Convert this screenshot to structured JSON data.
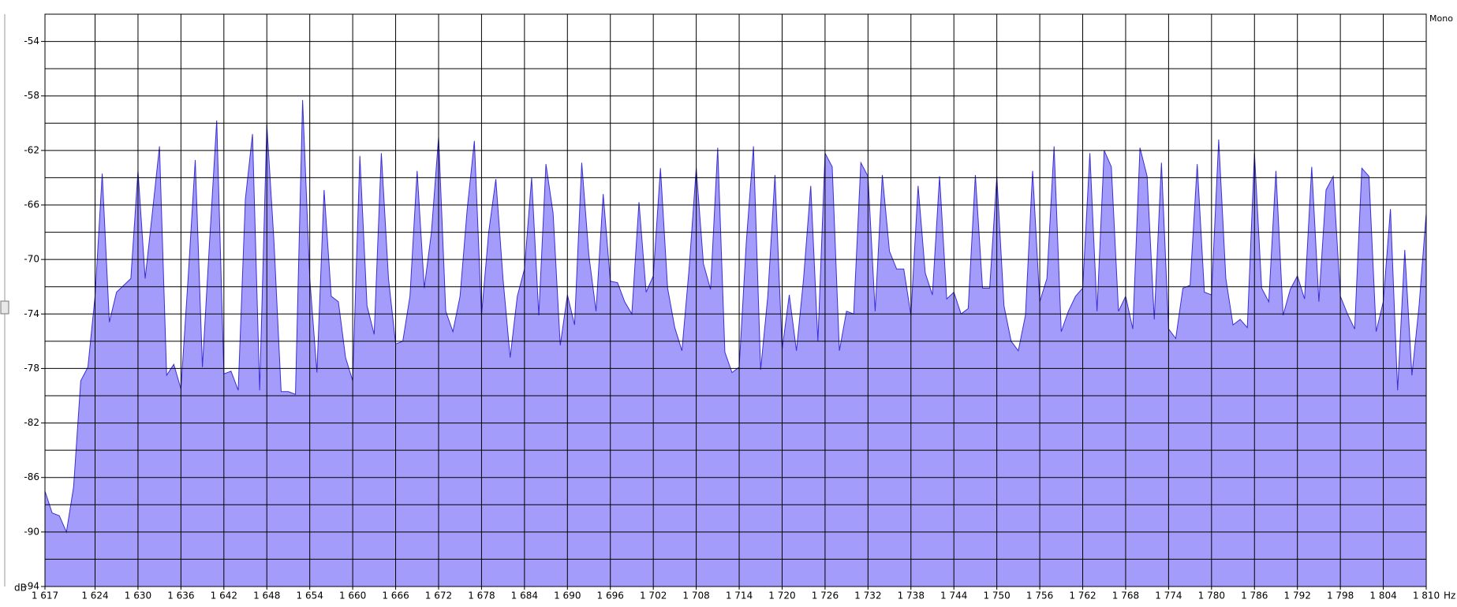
{
  "chart_data": {
    "type": "area",
    "corner_label": "Mono",
    "x_unit": "Hz",
    "y_unit": "dB",
    "color": "#a49cfa",
    "line_color": "#3a2fd6",
    "grid": true,
    "xlim": [
      1617,
      1810
    ],
    "ylim": [
      -94,
      -52
    ],
    "yticks": [
      -54,
      -58,
      -62,
      -66,
      -70,
      -74,
      -78,
      -82,
      -86,
      -90,
      -94
    ],
    "yminor": [
      -56,
      -60,
      -64,
      -68,
      -72,
      -76,
      -80,
      -84,
      -88,
      -92
    ],
    "xticks": [
      {
        "value": 1617,
        "label": "1 617"
      },
      {
        "value": 1624,
        "label": "1 624"
      },
      {
        "value": 1630,
        "label": "1 630"
      },
      {
        "value": 1636,
        "label": "1 636"
      },
      {
        "value": 1642,
        "label": "1 642"
      },
      {
        "value": 1648,
        "label": "1 648"
      },
      {
        "value": 1654,
        "label": "1 654"
      },
      {
        "value": 1660,
        "label": "1 660"
      },
      {
        "value": 1666,
        "label": "1 666"
      },
      {
        "value": 1672,
        "label": "1 672"
      },
      {
        "value": 1678,
        "label": "1 678"
      },
      {
        "value": 1684,
        "label": "1 684"
      },
      {
        "value": 1690,
        "label": "1 690"
      },
      {
        "value": 1696,
        "label": "1 696"
      },
      {
        "value": 1702,
        "label": "1 702"
      },
      {
        "value": 1708,
        "label": "1 708"
      },
      {
        "value": 1714,
        "label": "1 714"
      },
      {
        "value": 1720,
        "label": "1 720"
      },
      {
        "value": 1726,
        "label": "1 726"
      },
      {
        "value": 1732,
        "label": "1 732"
      },
      {
        "value": 1738,
        "label": "1 738"
      },
      {
        "value": 1744,
        "label": "1 744"
      },
      {
        "value": 1750,
        "label": "1 750"
      },
      {
        "value": 1756,
        "label": "1 756"
      },
      {
        "value": 1762,
        "label": "1 762"
      },
      {
        "value": 1768,
        "label": "1 768"
      },
      {
        "value": 1774,
        "label": "1 774"
      },
      {
        "value": 1780,
        "label": "1 780"
      },
      {
        "value": 1786,
        "label": "1 786"
      },
      {
        "value": 1792,
        "label": "1 792"
      },
      {
        "value": 1798,
        "label": "1 798"
      },
      {
        "value": 1804,
        "label": "1 804"
      },
      {
        "value": 1810,
        "label": "1 810"
      }
    ],
    "x": [
      1617,
      1618,
      1619,
      1620,
      1621,
      1622,
      1623,
      1624,
      1625,
      1626,
      1627,
      1628,
      1629,
      1630,
      1631,
      1632,
      1633,
      1634,
      1635,
      1636,
      1637,
      1638,
      1639,
      1640,
      1641,
      1642,
      1643,
      1644,
      1645,
      1646,
      1647,
      1648,
      1649,
      1650,
      1651,
      1652,
      1653,
      1654,
      1655,
      1656,
      1657,
      1658,
      1659,
      1660,
      1661,
      1662,
      1663,
      1664,
      1665,
      1666,
      1667,
      1668,
      1669,
      1670,
      1671,
      1672,
      1673,
      1674,
      1675,
      1676,
      1677,
      1678,
      1679,
      1680,
      1681,
      1682,
      1683,
      1684,
      1685,
      1686,
      1687,
      1688,
      1689,
      1690,
      1691,
      1692,
      1693,
      1694,
      1695,
      1696,
      1697,
      1698,
      1699,
      1700,
      1701,
      1702,
      1703,
      1704,
      1705,
      1706,
      1707,
      1708,
      1709,
      1710,
      1711,
      1712,
      1713,
      1714,
      1715,
      1716,
      1717,
      1718,
      1719,
      1720,
      1721,
      1722,
      1723,
      1724,
      1725,
      1726,
      1727,
      1728,
      1729,
      1730,
      1731,
      1732,
      1733,
      1734,
      1735,
      1736,
      1737,
      1738,
      1739,
      1740,
      1741,
      1742,
      1743,
      1744,
      1745,
      1746,
      1747,
      1748,
      1749,
      1750,
      1751,
      1752,
      1753,
      1754,
      1755,
      1756,
      1757,
      1758,
      1759,
      1760,
      1761,
      1762,
      1763,
      1764,
      1765,
      1766,
      1767,
      1768,
      1769,
      1770,
      1771,
      1772,
      1773,
      1774,
      1775,
      1776,
      1777,
      1778,
      1779,
      1780,
      1781,
      1782,
      1783,
      1784,
      1785,
      1786,
      1787,
      1788,
      1789,
      1790,
      1791,
      1792,
      1793,
      1794,
      1795,
      1796,
      1797,
      1798,
      1799,
      1800,
      1801,
      1802,
      1803,
      1804,
      1805,
      1806,
      1807,
      1808,
      1809,
      1810
    ],
    "values": [
      -87,
      -88.6,
      -88.8,
      -90,
      -86.7,
      -78.9,
      -77.9,
      -72.7,
      -63.7,
      -74.6,
      -72.4,
      -71.9,
      -71.4,
      -63.5,
      -71.4,
      -66.6,
      -61.7,
      -78.5,
      -77.7,
      -79.5,
      -71.4,
      -62.7,
      -77.9,
      -68.7,
      -59.8,
      -78.4,
      -78.2,
      -79.6,
      -65.6,
      -60.8,
      -79.6,
      -60.1,
      -68.7,
      -79.7,
      -79.7,
      -79.9,
      -58.3,
      -71.4,
      -78.3,
      -64.9,
      -72.7,
      -73.1,
      -77.2,
      -78.9,
      -62.4,
      -73.4,
      -75.5,
      -62.2,
      -71.4,
      -76.2,
      -76,
      -72.7,
      -63.5,
      -72.1,
      -68,
      -61,
      -73.8,
      -75.3,
      -72.7,
      -66.3,
      -61.3,
      -74.1,
      -68,
      -64.1,
      -71.4,
      -77.2,
      -72.7,
      -70.7,
      -64,
      -74.1,
      -63,
      -66.6,
      -76.3,
      -72.6,
      -74.8,
      -62.9,
      -69.7,
      -73.8,
      -65.2,
      -71.6,
      -71.7,
      -73.1,
      -74,
      -65.8,
      -72.4,
      -71.2,
      -63.3,
      -72.1,
      -75,
      -76.7,
      -70.7,
      -63.3,
      -70.3,
      -72.2,
      -61.8,
      -76.8,
      -78.3,
      -77.9,
      -68.7,
      -61.7,
      -78.1,
      -72.7,
      -63.8,
      -76.6,
      -72.6,
      -76.7,
      -71.4,
      -64.6,
      -76,
      -62.2,
      -63.2,
      -76.7,
      -73.8,
      -74,
      -62.9,
      -63.9,
      -73.8,
      -63.8,
      -69.4,
      -70.7,
      -70.7,
      -74.1,
      -64.6,
      -71,
      -72.6,
      -63.9,
      -72.9,
      -72.4,
      -74,
      -73.6,
      -63.8,
      -72.1,
      -72.1,
      -63.9,
      -73.4,
      -76,
      -76.7,
      -74.1,
      -63.5,
      -73.1,
      -71.4,
      -61.7,
      -75.3,
      -73.8,
      -72.7,
      -72.1,
      -62.2,
      -73.8,
      -62,
      -63.2,
      -73.8,
      -72.7,
      -75.1,
      -61.8,
      -63.9,
      -74.4,
      -62.9,
      -75.1,
      -75.8,
      -72.1,
      -71.9,
      -63,
      -72.4,
      -72.6,
      -61.2,
      -71.4,
      -74.8,
      -74.4,
      -75,
      -62.2,
      -72.1,
      -73.1,
      -63.5,
      -74.1,
      -72.2,
      -71.2,
      -72.9,
      -63.2,
      -73.1,
      -64.9,
      -63.9,
      -72.7,
      -74,
      -75.1,
      -63.3,
      -63.9,
      -75.3,
      -73.1,
      -66.3,
      -79.6,
      -69.3,
      -78.5,
      -73.4,
      -66.6
    ]
  }
}
